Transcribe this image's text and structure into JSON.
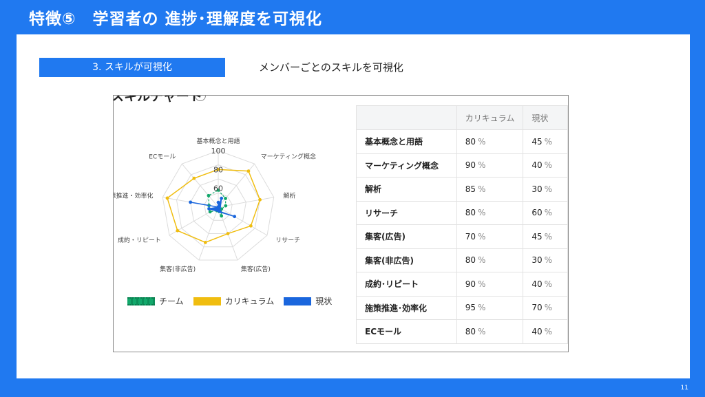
{
  "header": {
    "title": "特徴⑤　学習者の 進捗･理解度を可視化"
  },
  "section": {
    "badge": "3. スキルが可視化",
    "description": "メンバーごとのスキルを可視化"
  },
  "screenshot": {
    "title_cut": "スキルチャート"
  },
  "chart_data": {
    "type": "radar",
    "categories": [
      "基本概念と用語",
      "マーケティング概念",
      "解析",
      "リサーチ",
      "集客(広告)",
      "集客(非広告)",
      "成約・リピート",
      "施策推進・効率化",
      "ECモール"
    ],
    "tick_labels": [
      "60",
      "80",
      "100"
    ],
    "range": [
      40,
      100
    ],
    "series": [
      {
        "name": "チーム",
        "values": [
          58,
          52,
          48,
          44,
          50,
          44,
          50,
          50,
          56
        ],
        "color": "#12a86b"
      },
      {
        "name": "カリキュラム",
        "values": [
          80,
          90,
          85,
          80,
          70,
          80,
          90,
          95,
          80
        ],
        "color": "#f0bd0f"
      },
      {
        "name": "現状",
        "values": [
          45,
          40,
          30,
          60,
          45,
          30,
          40,
          70,
          40
        ],
        "color": "#1a66dd"
      }
    ]
  },
  "legend": {
    "team": "チーム",
    "curriculum": "カリキュラム",
    "current": "現状"
  },
  "table": {
    "headers": [
      "",
      "カリキュラム",
      "現状"
    ],
    "unit": "%",
    "rows": [
      {
        "name": "基本概念と用語",
        "curriculum": "80",
        "current": "45"
      },
      {
        "name": "マーケティング概念",
        "curriculum": "90",
        "current": "40"
      },
      {
        "name": "解析",
        "curriculum": "85",
        "current": "30"
      },
      {
        "name": "リサーチ",
        "curriculum": "80",
        "current": "60"
      },
      {
        "name": "集客(広告)",
        "curriculum": "70",
        "current": "45"
      },
      {
        "name": "集客(非広告)",
        "curriculum": "80",
        "current": "30"
      },
      {
        "name": "成約･リピート",
        "curriculum": "90",
        "current": "40"
      },
      {
        "name": "施策推進･効率化",
        "curriculum": "95",
        "current": "70"
      },
      {
        "name": "ECモール",
        "curriculum": "80",
        "current": "40"
      }
    ]
  },
  "page": {
    "number": "11"
  }
}
